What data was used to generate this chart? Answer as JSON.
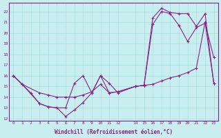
{
  "xlabel": "Windchill (Refroidissement éolien,°C)",
  "bg_color": "#c8eef0",
  "grid_color": "#aadddd",
  "line_color": "#882288",
  "xlim": [
    -0.5,
    23.5
  ],
  "ylim": [
    11.8,
    22.8
  ],
  "yticks": [
    12,
    13,
    14,
    15,
    16,
    17,
    18,
    19,
    20,
    21,
    22
  ],
  "xticks": [
    0,
    1,
    2,
    3,
    4,
    5,
    6,
    7,
    8,
    9,
    10,
    11,
    12,
    14,
    15,
    16,
    17,
    18,
    19,
    20,
    21,
    22,
    23
  ],
  "line1_x": [
    0,
    1,
    3,
    4,
    5,
    6,
    7,
    8,
    9,
    10,
    11,
    12,
    14,
    15,
    16,
    17,
    18,
    19,
    20,
    21,
    22,
    23
  ],
  "line1_y": [
    16.0,
    15.2,
    14.4,
    14.2,
    14.0,
    14.0,
    14.0,
    14.2,
    14.5,
    15.2,
    14.4,
    14.5,
    15.0,
    15.1,
    15.2,
    15.5,
    15.8,
    16.0,
    16.3,
    16.7,
    21.0,
    15.3
  ],
  "line2_x": [
    0,
    1,
    3,
    4,
    5,
    6,
    7,
    8,
    9,
    10,
    11,
    12,
    14,
    15,
    16,
    17,
    18,
    19,
    20,
    21,
    22,
    23
  ],
  "line2_y": [
    16.0,
    15.2,
    13.4,
    13.1,
    13.0,
    13.0,
    15.3,
    16.0,
    14.4,
    16.0,
    14.4,
    14.5,
    15.0,
    15.1,
    20.8,
    22.0,
    21.8,
    20.7,
    19.2,
    20.5,
    20.9,
    17.7
  ],
  "line3_x": [
    0,
    1,
    2,
    3,
    4,
    5,
    6,
    7,
    8,
    9,
    10,
    11,
    12,
    14,
    15,
    16,
    17,
    18,
    19,
    20,
    21,
    22,
    23
  ],
  "line3_y": [
    16.0,
    15.2,
    14.4,
    13.4,
    13.1,
    13.0,
    12.2,
    12.8,
    13.5,
    14.4,
    16.0,
    15.3,
    14.4,
    15.0,
    15.1,
    21.4,
    22.3,
    21.9,
    21.8,
    21.8,
    20.6,
    21.8,
    15.3
  ]
}
